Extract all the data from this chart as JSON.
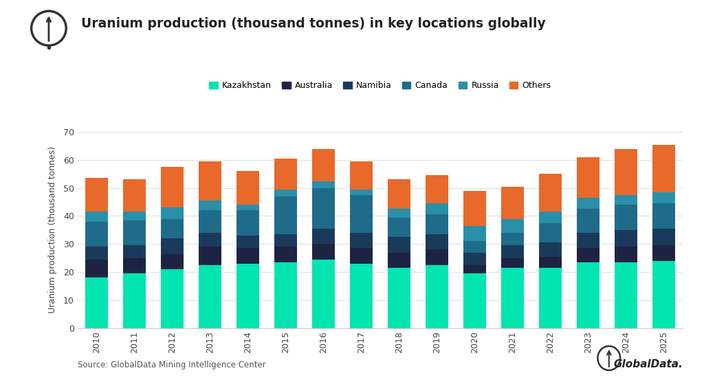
{
  "years": [
    2010,
    2011,
    2012,
    2013,
    2014,
    2015,
    2016,
    2017,
    2018,
    2019,
    2020,
    2021,
    2022,
    2023,
    2024,
    2025
  ],
  "Kazakhstan": [
    18.0,
    19.5,
    21.0,
    22.5,
    23.0,
    23.5,
    24.5,
    23.0,
    21.5,
    22.5,
    19.5,
    21.5,
    21.5,
    23.5,
    23.5,
    24.0
  ],
  "Australia": [
    6.5,
    5.5,
    5.5,
    6.5,
    5.5,
    5.5,
    5.5,
    5.5,
    5.5,
    5.5,
    3.0,
    3.5,
    4.0,
    5.0,
    5.5,
    5.5
  ],
  "Namibia": [
    4.5,
    4.5,
    5.5,
    5.0,
    4.5,
    4.5,
    5.5,
    5.5,
    5.5,
    5.5,
    4.5,
    4.5,
    5.0,
    5.5,
    6.0,
    6.0
  ],
  "Canada": [
    9.0,
    9.0,
    7.0,
    8.0,
    9.0,
    13.5,
    14.5,
    13.5,
    7.0,
    7.0,
    4.0,
    4.5,
    7.0,
    8.5,
    9.0,
    9.0
  ],
  "Russia": [
    3.5,
    3.0,
    4.0,
    3.5,
    2.0,
    2.5,
    2.5,
    2.0,
    3.0,
    4.0,
    5.5,
    5.0,
    4.0,
    4.0,
    3.5,
    4.0
  ],
  "Others": [
    12.0,
    11.5,
    14.5,
    14.0,
    12.0,
    11.0,
    11.5,
    10.0,
    10.5,
    10.0,
    12.5,
    11.5,
    13.5,
    14.5,
    16.5,
    17.0
  ],
  "colors": {
    "Kazakhstan": "#00e5b0",
    "Australia": "#1e2344",
    "Namibia": "#1a3a5c",
    "Canada": "#1f6b8a",
    "Russia": "#2a8fa8",
    "Others": "#e8692a"
  },
  "title": "Uranium production (thousand tonnes) in key locations globally",
  "ylabel": "Uranium production (thousand tonnes)",
  "ylim": [
    0,
    70
  ],
  "yticks": [
    0,
    10,
    20,
    30,
    40,
    50,
    60,
    70
  ],
  "source_text": "Source: GlobalData Mining Intelligence Center",
  "globaldata_text": "GlobalData.",
  "background_color": "#ffffff",
  "categories": [
    "Kazakhstan",
    "Australia",
    "Namibia",
    "Canada",
    "Russia",
    "Others"
  ]
}
